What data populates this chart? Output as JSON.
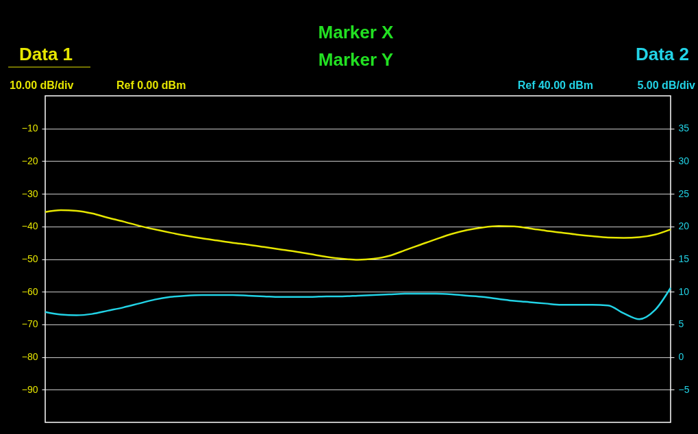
{
  "chart_data": {
    "type": "line",
    "title": "Marker X",
    "subtitle": "Marker Y",
    "categories": [
      null,
      null,
      null,
      null,
      null,
      null,
      null,
      null,
      null,
      null,
      null,
      null,
      null,
      null,
      null,
      null,
      null,
      null,
      null,
      null,
      null,
      null,
      null,
      null,
      null,
      null,
      null,
      null,
      null,
      null,
      null,
      null,
      null,
      null,
      null,
      null,
      null,
      null,
      null,
      null,
      null
    ],
    "series": [
      {
        "name": "Data 1",
        "color": "#e6e600",
        "values": [
          -35.6,
          -35.0,
          -35.2,
          -36.0,
          -37.3,
          -38.5,
          -39.8,
          -40.9,
          -41.9,
          -42.8,
          -43.6,
          -44.3,
          -45.0,
          -45.6,
          -46.3,
          -47.0,
          -47.7,
          -48.5,
          -49.3,
          -49.9,
          -50.2,
          -49.9,
          -49.0,
          -47.3,
          -45.6,
          -43.9,
          -42.3,
          -41.1,
          -40.3,
          -39.9,
          -40.0,
          -40.6,
          -41.3,
          -41.9,
          -42.5,
          -43.0,
          -43.4,
          -43.5,
          -43.3,
          -42.5,
          -40.9
        ]
      },
      {
        "name": "Data 2",
        "color": "#22d3e6",
        "axis": "y2",
        "values": [
          6.9,
          6.5,
          6.4,
          6.6,
          7.1,
          7.6,
          8.2,
          8.8,
          9.2,
          9.4,
          9.5,
          9.5,
          9.5,
          9.4,
          9.3,
          9.2,
          9.2,
          9.2,
          9.3,
          9.3,
          9.4,
          9.5,
          9.6,
          9.7,
          9.7,
          9.7,
          9.6,
          9.4,
          9.2,
          8.9,
          8.6,
          8.4,
          8.2,
          8.0,
          8.0,
          8.0,
          7.9,
          6.7,
          5.8,
          7.2,
          10.6
        ]
      }
    ],
    "ylim": [
      -100,
      0
    ],
    "yticks": [
      -90,
      -80,
      -70,
      -60,
      -50,
      -40,
      -30,
      -20,
      -10
    ],
    "y2lim": [
      -10,
      40
    ],
    "y2ticks": [
      -5,
      0,
      5,
      10,
      15,
      20,
      25,
      30,
      35
    ],
    "annotations": [
      "10.00 dB/div",
      "Ref 0.00 dBm",
      "Ref 40.00 dBm",
      "5.00 dB/div"
    ],
    "grid": true,
    "legend": false,
    "marker": "none",
    "line_style": "solid"
  }
}
